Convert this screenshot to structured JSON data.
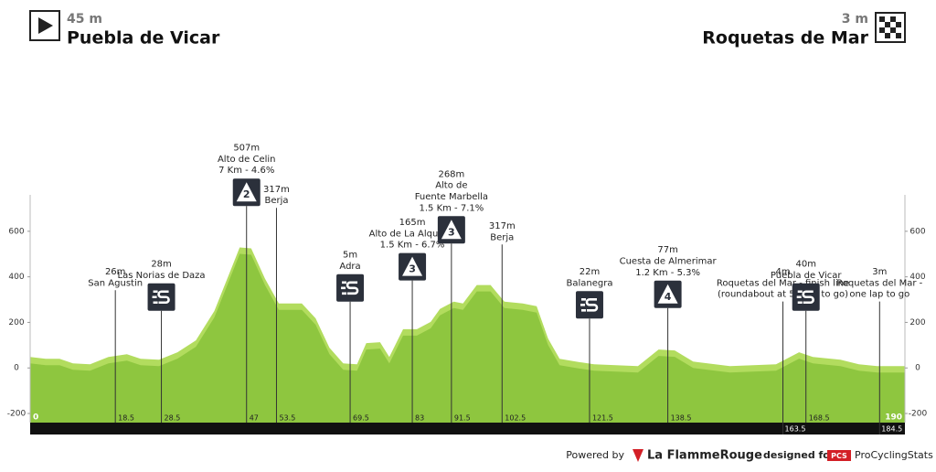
{
  "header": {
    "start_altitude": "45 m",
    "start_name": "Puebla de Vicar",
    "finish_altitude": "3 m",
    "finish_name": "Roquetas de Mar"
  },
  "chart_data": {
    "type": "area",
    "xlim": [
      0,
      190
    ],
    "ylim": [
      -240,
      760
    ],
    "yticks": [
      -200,
      0,
      200,
      400,
      600
    ],
    "profile": {
      "color": "#8ec63f",
      "light_color": "#b2dc5e",
      "x": [
        0,
        3.4,
        6.4,
        9.3,
        13,
        17,
        21,
        24,
        28,
        32,
        36,
        40,
        44,
        45.5,
        48,
        51,
        54,
        59,
        62,
        65,
        68,
        71,
        73,
        76,
        78,
        81,
        84,
        87,
        89,
        92,
        94,
        97,
        100,
        103,
        107,
        110,
        112.5,
        115,
        118.5,
        122.5,
        132,
        136.5,
        140,
        144,
        152,
        162,
        167,
        170,
        176,
        180,
        184,
        190
      ],
      "values": [
        48,
        40,
        40,
        20,
        16,
        48,
        60,
        40,
        36,
        69,
        121,
        250,
        452,
        529,
        525,
        392,
        283,
        283,
        218,
        89,
        20,
        16,
        109,
        113,
        48,
        170,
        170,
        202,
        259,
        291,
        283,
        364,
        364,
        291,
        283,
        271,
        129,
        40,
        28,
        16,
        8,
        81,
        77,
        28,
        8,
        16,
        69,
        48,
        36,
        16,
        8,
        8
      ]
    },
    "points": [
      {
        "km": 18.5,
        "lines": [
          "26m",
          "San Agustin"
        ]
      },
      {
        "km": 28.5,
        "lines": [
          "28m",
          "Las Norias de Daza"
        ],
        "sprint": true
      },
      {
        "km": 47,
        "lines": [
          "507m",
          "Alto de Celin",
          "7 Km - 4.6%"
        ],
        "category": "2"
      },
      {
        "km": 53.5,
        "lines": [
          "317m",
          "Berja"
        ]
      },
      {
        "km": 69.5,
        "lines": [
          "5m",
          "Adra"
        ],
        "sprint": true
      },
      {
        "km": 83,
        "lines": [
          "165m",
          "Alto de La Alqueria",
          "1.5 Km - 6.7%"
        ],
        "category": "3"
      },
      {
        "km": 91.5,
        "lines": [
          "268m",
          "Alto de",
          "Fuente Marbella",
          "1.5 Km - 7.1%"
        ],
        "category": "3"
      },
      {
        "km": 102.5,
        "lines": [
          "317m",
          "Berja"
        ]
      },
      {
        "km": 121.5,
        "lines": [
          "22m",
          "Balanegra"
        ],
        "sprint": true
      },
      {
        "km": 138.5,
        "lines": [
          "77m",
          "Cuesta de Almerimar",
          "1.2 Km - 5.3%"
        ],
        "category": "4"
      },
      {
        "km": 163.5,
        "lines": [
          "4m",
          "Roquetas del Mar - finish line",
          "(roundabout at 500 m to go)"
        ],
        "label_below": true
      },
      {
        "km": 168.5,
        "lines": [
          "40m",
          "Puebla de Vicar"
        ],
        "sprint": true
      },
      {
        "km": 184.5,
        "lines": [
          "3m",
          "Roquetas del Mar -",
          "one lap to go"
        ],
        "label_below": true
      }
    ]
  },
  "footer": {
    "powered": "Powered by",
    "brand": "La FlammeRouge",
    "designed": "designed for",
    "pcs": "PCS",
    "pcs_name": "ProCyclingStats"
  }
}
